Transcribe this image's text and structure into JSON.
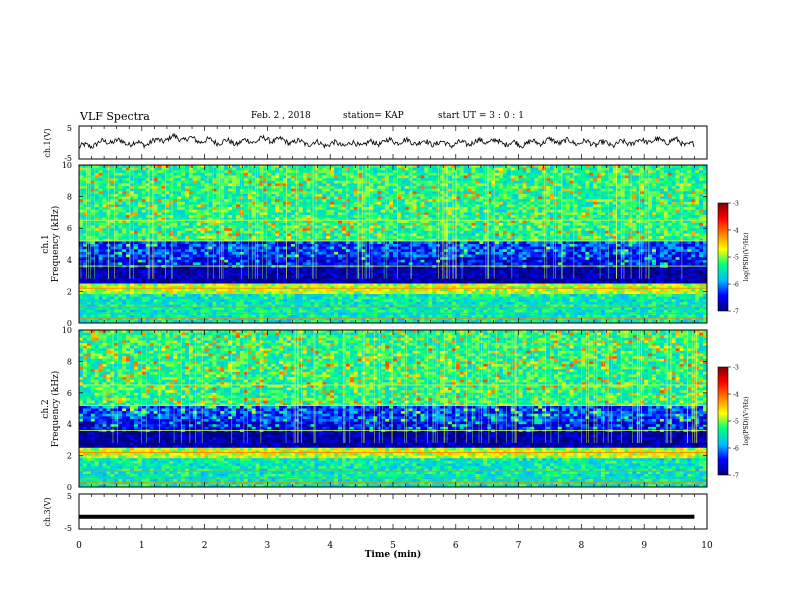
{
  "header": {
    "title": "VLF Spectra",
    "date": "Feb. 2 , 2018",
    "station": "station= KAP",
    "start": "start UT = 3 : 0 : 1"
  },
  "colorbar": {
    "title": "log(PSD)(V²/Hz)",
    "ticks": [
      "-3",
      "-4",
      "-5",
      "-6",
      "-7"
    ],
    "colors": [
      "#000080",
      "#0000ff",
      "#00bfff",
      "#00ff80",
      "#ffff00",
      "#ff8000",
      "#ff0000",
      "#800000"
    ]
  },
  "chart_data": [
    {
      "type": "line",
      "panel": "ch1-voltage",
      "ylabel": "ch.1(V)",
      "ylim": [
        -5,
        5
      ],
      "yticks": [
        "5",
        "-5"
      ],
      "xlim": [
        0,
        10
      ],
      "x": [
        0,
        0.5,
        1,
        1.5,
        2,
        2.5,
        3,
        3.5,
        4,
        4.5,
        5,
        5.5,
        6,
        6.5,
        7,
        7.5,
        8,
        8.5,
        9,
        9.5,
        9.8
      ],
      "values": [
        -1.5,
        0.5,
        -0.5,
        1.5,
        0.5,
        0.0,
        1.0,
        0.0,
        -0.5,
        -0.5,
        0.5,
        0.0,
        -0.5,
        0.5,
        -0.5,
        0.5,
        0.0,
        -0.5,
        0.5,
        0.5,
        -1.0
      ]
    },
    {
      "type": "heatmap",
      "panel": "ch1-spectrogram",
      "ylabel": "ch.1 Frequency (kHz)",
      "ylim": [
        0,
        10
      ],
      "yticks": [
        "0",
        "2",
        "4",
        "6",
        "8",
        "10"
      ],
      "xlim": [
        0,
        10
      ],
      "zlabel": "log(PSD)(V²/Hz)",
      "zlim": [
        -7,
        -3
      ]
    },
    {
      "type": "heatmap",
      "panel": "ch2-spectrogram",
      "ylabel": "ch.2 Frequency (kHz)",
      "ylim": [
        0,
        10
      ],
      "yticks": [
        "0",
        "2",
        "4",
        "6",
        "8",
        "10"
      ],
      "xlim": [
        0,
        10
      ],
      "zlabel": "log(PSD)(V²/Hz)",
      "zlim": [
        -7,
        -3
      ]
    },
    {
      "type": "line",
      "panel": "ch3-voltage",
      "ylabel": "ch.3(V)",
      "ylim": [
        -5,
        5
      ],
      "yticks": [
        "5",
        "-5"
      ],
      "xlim": [
        0,
        10
      ],
      "x": [
        0,
        9.8
      ],
      "values": [
        -1.5,
        -1.5
      ]
    }
  ],
  "xaxis": {
    "label": "Time (min)",
    "ticks": [
      "0",
      "1",
      "2",
      "3",
      "4",
      "5",
      "6",
      "7",
      "8",
      "9",
      "10"
    ]
  }
}
